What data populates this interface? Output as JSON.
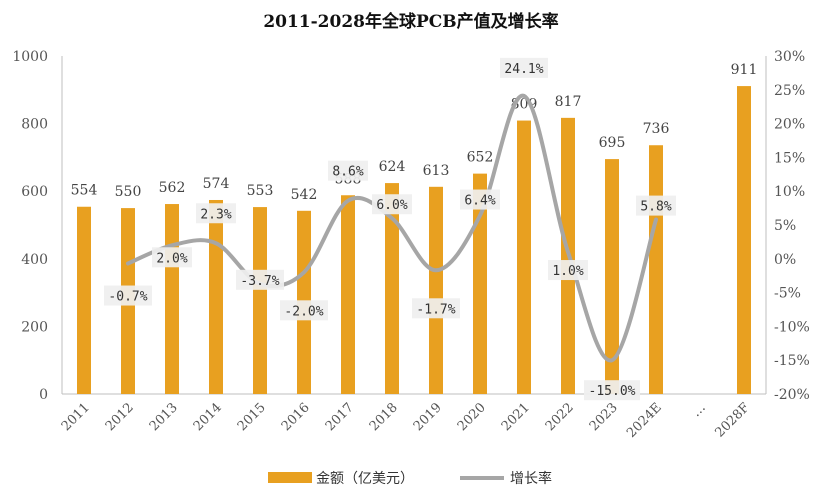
{
  "chart_data": {
    "type": "bar",
    "title": "2011-2028年全球PCB产值及增长率",
    "categories": [
      "2011",
      "2012",
      "2013",
      "2014",
      "2015",
      "2016",
      "2017",
      "2018",
      "2019",
      "2020",
      "2021",
      "2022",
      "2023",
      "2024E",
      "…",
      "2028F"
    ],
    "series": [
      {
        "name": "金额（亿美元）",
        "type": "bar",
        "axis": "left",
        "color": "#E8A020",
        "values": [
          554,
          550,
          562,
          574,
          553,
          542,
          588,
          624,
          613,
          652,
          809,
          817,
          695,
          736,
          null,
          911
        ]
      },
      {
        "name": "增长率",
        "type": "line",
        "axis": "right",
        "color": "#A6A6A6",
        "values": [
          null,
          -0.7,
          2.0,
          2.3,
          -3.7,
          -2.0,
          8.6,
          6.0,
          -1.7,
          6.4,
          24.1,
          1.0,
          -15.0,
          5.8,
          null,
          null
        ]
      }
    ],
    "bar_labels": [
      "554",
      "550",
      "562",
      "574",
      "553",
      "542",
      "588",
      "624",
      "613",
      "652",
      "809",
      "817",
      "695",
      "736",
      "",
      "911"
    ],
    "growth_labels": [
      "",
      "-0.7%",
      "2.0%",
      "2.3%",
      "-3.7%",
      "-2.0%",
      "8.6%",
      "6.0%",
      "-1.7%",
      "6.4%",
      "24.1%",
      "1.0%",
      "-15.0%",
      "5.8%",
      "",
      ""
    ],
    "y_left": {
      "min": 0,
      "max": 1000,
      "ticks": [
        "0",
        "200",
        "400",
        "600",
        "800",
        "1000"
      ]
    },
    "y_right": {
      "min": -20,
      "max": 30,
      "ticks": [
        "-20%",
        "-15%",
        "-10%",
        "-5%",
        "0%",
        "5%",
        "10%",
        "15%",
        "20%",
        "25%",
        "30%"
      ]
    },
    "grid": false,
    "legend_position": "bottom",
    "legend": [
      {
        "label": "金额（亿美元）",
        "kind": "bar",
        "color": "#E8A020"
      },
      {
        "label": "增长率",
        "kind": "line",
        "color": "#A6A6A6"
      }
    ]
  }
}
